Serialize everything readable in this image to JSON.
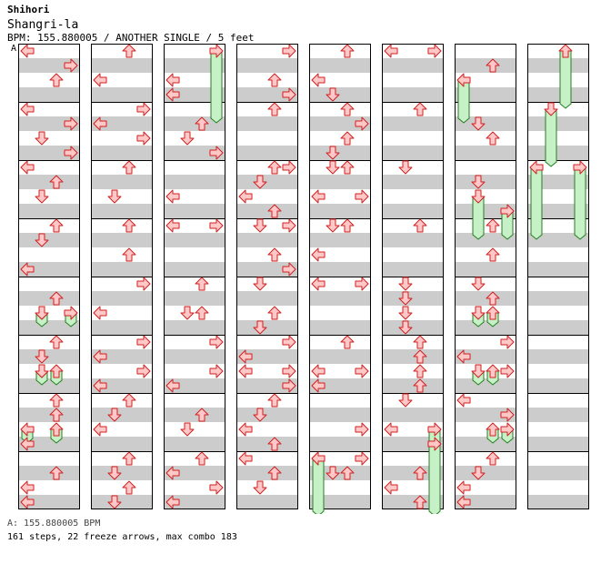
{
  "header": {
    "artist": "Shihori",
    "title": "Shangri-la",
    "info": "BPM: 155.880005 / ANOTHER SINGLE / 5 feet",
    "speed_marker": "A"
  },
  "footer": {
    "bpm_line": "A: 155.880005 BPM",
    "stats_line": "161 steps, 22 freeze arrows, max combo 183"
  },
  "colors": {
    "arrow_fill": "#ffc8c8",
    "arrow_stroke": "#d02020",
    "freeze_fill": "#c8f0c8",
    "freeze_stroke": "#208020",
    "stripe": "#cccccc",
    "border": "#000000"
  },
  "chart_data": {
    "type": "step-chart",
    "columns": 8,
    "measures_per_column": 8,
    "lanes": [
      "left",
      "down",
      "up",
      "right"
    ],
    "arrows": [
      [
        0,
        0,
        0
      ],
      [
        0,
        2,
        3
      ],
      [
        0,
        4,
        2
      ],
      [
        0,
        8,
        0
      ],
      [
        0,
        10,
        3
      ],
      [
        0,
        12,
        1
      ],
      [
        0,
        14,
        3
      ],
      [
        0,
        16,
        0
      ],
      [
        0,
        18,
        2
      ],
      [
        0,
        20,
        1
      ],
      [
        0,
        24,
        2
      ],
      [
        0,
        26,
        1
      ],
      [
        0,
        30,
        0
      ],
      [
        0,
        34,
        2
      ],
      [
        0,
        36,
        1
      ],
      [
        0,
        40,
        2
      ],
      [
        0,
        42,
        1
      ],
      [
        0,
        44,
        1
      ],
      [
        0,
        48,
        2
      ],
      [
        0,
        50,
        2
      ],
      [
        0,
        54,
        0
      ],
      [
        0,
        58,
        2
      ],
      [
        0,
        60,
        0
      ],
      [
        0,
        62,
        0
      ],
      [
        1,
        0,
        2
      ],
      [
        1,
        4,
        0
      ],
      [
        1,
        8,
        3
      ],
      [
        1,
        10,
        0
      ],
      [
        1,
        12,
        3
      ],
      [
        1,
        16,
        2
      ],
      [
        1,
        20,
        1
      ],
      [
        1,
        24,
        2
      ],
      [
        1,
        28,
        2
      ],
      [
        1,
        32,
        3
      ],
      [
        1,
        36,
        0
      ],
      [
        1,
        40,
        3
      ],
      [
        1,
        42,
        0
      ],
      [
        1,
        44,
        3
      ],
      [
        1,
        46,
        0
      ],
      [
        1,
        48,
        2
      ],
      [
        1,
        50,
        1
      ],
      [
        1,
        52,
        0
      ],
      [
        1,
        56,
        2
      ],
      [
        1,
        58,
        1
      ],
      [
        1,
        60,
        2
      ],
      [
        1,
        62,
        1
      ],
      [
        2,
        4,
        0
      ],
      [
        2,
        6,
        0
      ],
      [
        2,
        10,
        2
      ],
      [
        2,
        12,
        1
      ],
      [
        2,
        14,
        3
      ],
      [
        2,
        20,
        0
      ],
      [
        2,
        24,
        0
      ],
      [
        2,
        24,
        3
      ],
      [
        2,
        32,
        2
      ],
      [
        2,
        36,
        1
      ],
      [
        2,
        36,
        2
      ],
      [
        2,
        40,
        3
      ],
      [
        2,
        44,
        3
      ],
      [
        2,
        46,
        0
      ],
      [
        2,
        50,
        2
      ],
      [
        2,
        52,
        1
      ],
      [
        2,
        56,
        2
      ],
      [
        2,
        58,
        0
      ],
      [
        2,
        60,
        3
      ],
      [
        2,
        62,
        0
      ],
      [
        3,
        0,
        3
      ],
      [
        3,
        4,
        2
      ],
      [
        3,
        6,
        3
      ],
      [
        3,
        8,
        2
      ],
      [
        3,
        16,
        2
      ],
      [
        3,
        16,
        3
      ],
      [
        3,
        18,
        1
      ],
      [
        3,
        20,
        0
      ],
      [
        3,
        22,
        2
      ],
      [
        3,
        24,
        1
      ],
      [
        3,
        24,
        3
      ],
      [
        3,
        28,
        2
      ],
      [
        3,
        30,
        3
      ],
      [
        3,
        32,
        1
      ],
      [
        3,
        36,
        2
      ],
      [
        3,
        38,
        1
      ],
      [
        3,
        40,
        3
      ],
      [
        3,
        42,
        0
      ],
      [
        3,
        44,
        0
      ],
      [
        3,
        44,
        3
      ],
      [
        3,
        46,
        3
      ],
      [
        3,
        48,
        2
      ],
      [
        3,
        50,
        1
      ],
      [
        3,
        52,
        0
      ],
      [
        3,
        54,
        2
      ],
      [
        3,
        56,
        0
      ],
      [
        3,
        58,
        2
      ],
      [
        3,
        60,
        1
      ],
      [
        4,
        0,
        2
      ],
      [
        4,
        4,
        0
      ],
      [
        4,
        6,
        1
      ],
      [
        4,
        8,
        2
      ],
      [
        4,
        10,
        3
      ],
      [
        4,
        12,
        2
      ],
      [
        4,
        14,
        1
      ],
      [
        4,
        16,
        1
      ],
      [
        4,
        16,
        2
      ],
      [
        4,
        20,
        0
      ],
      [
        4,
        20,
        3
      ],
      [
        4,
        24,
        1
      ],
      [
        4,
        24,
        2
      ],
      [
        4,
        28,
        0
      ],
      [
        4,
        32,
        0
      ],
      [
        4,
        32,
        3
      ],
      [
        4,
        40,
        2
      ],
      [
        4,
        44,
        0
      ],
      [
        4,
        44,
        3
      ],
      [
        4,
        46,
        0
      ],
      [
        4,
        52,
        3
      ],
      [
        4,
        56,
        0
      ],
      [
        4,
        56,
        3
      ],
      [
        4,
        58,
        1
      ],
      [
        4,
        58,
        2
      ],
      [
        5,
        0,
        0
      ],
      [
        5,
        0,
        3
      ],
      [
        5,
        8,
        2
      ],
      [
        5,
        16,
        1
      ],
      [
        5,
        24,
        2
      ],
      [
        5,
        32,
        1
      ],
      [
        5,
        34,
        1
      ],
      [
        5,
        36,
        1
      ],
      [
        5,
        38,
        1
      ],
      [
        5,
        40,
        2
      ],
      [
        5,
        42,
        2
      ],
      [
        5,
        44,
        2
      ],
      [
        5,
        46,
        2
      ],
      [
        5,
        48,
        1
      ],
      [
        5,
        52,
        0
      ],
      [
        5,
        54,
        3
      ],
      [
        5,
        58,
        2
      ],
      [
        5,
        60,
        0
      ],
      [
        5,
        62,
        2
      ],
      [
        6,
        2,
        2
      ],
      [
        6,
        10,
        1
      ],
      [
        6,
        12,
        2
      ],
      [
        6,
        18,
        1
      ],
      [
        6,
        24,
        2
      ],
      [
        6,
        28,
        2
      ],
      [
        6,
        32,
        1
      ],
      [
        6,
        34,
        2
      ],
      [
        6,
        40,
        3
      ],
      [
        6,
        42,
        0
      ],
      [
        6,
        44,
        3
      ],
      [
        6,
        48,
        0
      ],
      [
        6,
        50,
        3
      ],
      [
        6,
        56,
        2
      ],
      [
        6,
        58,
        1
      ],
      [
        6,
        60,
        0
      ],
      [
        6,
        62,
        0
      ]
    ],
    "freezes": [
      [
        0,
        36,
        1,
        37
      ],
      [
        0,
        36,
        3,
        37
      ],
      [
        0,
        44,
        1,
        45
      ],
      [
        0,
        44,
        2,
        45
      ],
      [
        0,
        52,
        0,
        53
      ],
      [
        0,
        52,
        2,
        53
      ],
      [
        2,
        0,
        3,
        9
      ],
      [
        4,
        56,
        0,
        63
      ],
      [
        5,
        52,
        3,
        63
      ],
      [
        6,
        4,
        0,
        9
      ],
      [
        6,
        20,
        1,
        25
      ],
      [
        6,
        22,
        3,
        25
      ],
      [
        6,
        36,
        1,
        37
      ],
      [
        6,
        36,
        2,
        37
      ],
      [
        6,
        44,
        1,
        45
      ],
      [
        6,
        44,
        2,
        45
      ],
      [
        6,
        52,
        2,
        53
      ],
      [
        6,
        52,
        3,
        53
      ],
      [
        7,
        0,
        2,
        7
      ],
      [
        7,
        8,
        1,
        15
      ],
      [
        7,
        16,
        0,
        25
      ],
      [
        7,
        16,
        3,
        25
      ]
    ]
  }
}
